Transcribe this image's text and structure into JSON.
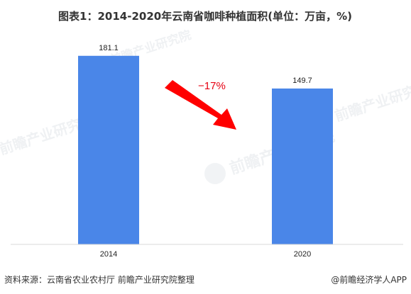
{
  "chart_data": {
    "type": "bar",
    "title": "图表1：2014-2020年云南省咖啡种植面积(单位：万亩，%)",
    "categories": [
      "2014",
      "2020"
    ],
    "values": [
      181.1,
      149.7
    ],
    "value_labels": [
      "181.1",
      "149.7"
    ],
    "ylim": [
      0,
      200
    ],
    "grid": false,
    "bar_color": "#4a86e8",
    "annotation": {
      "text": "−17%",
      "color": "#e60012"
    }
  },
  "source": "资料来源：云南省农业农村厅 前瞻产业研究院整理",
  "credit": "@前瞻经济学人APP",
  "watermark": "前瞻产业研究院"
}
